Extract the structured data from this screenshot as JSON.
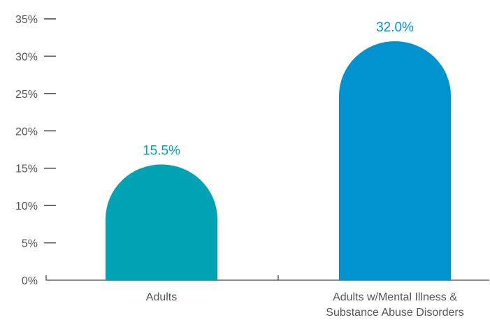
{
  "chart_data": {
    "type": "bar",
    "title": "",
    "xlabel": "",
    "ylabel": "",
    "ylim": [
      0,
      35
    ],
    "yticks": [
      0,
      5,
      10,
      15,
      20,
      25,
      30,
      35
    ],
    "ytick_labels": [
      "0%",
      "5%",
      "10%",
      "15%",
      "20%",
      "25%",
      "30%",
      "35%"
    ],
    "categories": [
      [
        "Adults"
      ],
      [
        "Adults w/Mental Illness &",
        "Substance Abuse Disorders"
      ]
    ],
    "values": [
      15.5,
      32.0
    ],
    "data_labels": [
      "15.5%",
      "32.0%"
    ],
    "colors": [
      "#00a3b4",
      "#0093d0"
    ],
    "grid": false,
    "bar_shape": "rounded-top"
  }
}
